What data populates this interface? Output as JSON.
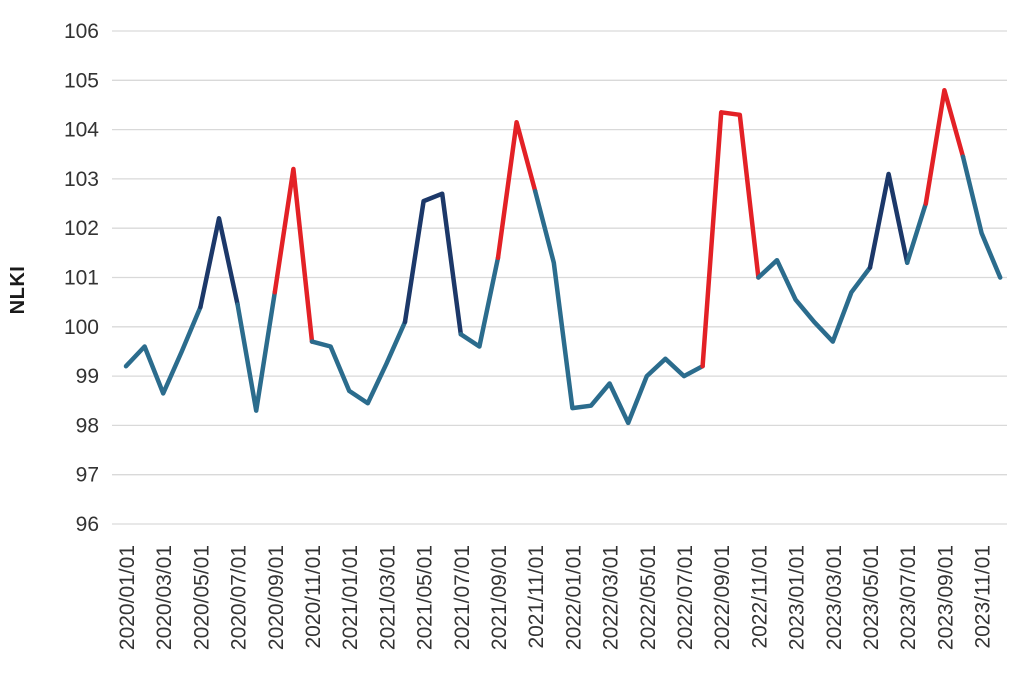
{
  "chart_data": {
    "type": "line",
    "title": "",
    "ylabel": "NLKI",
    "xlabel": "",
    "ylim": [
      96,
      106
    ],
    "ytick_step": 1,
    "ytick_labels": [
      "96",
      "97",
      "98",
      "99",
      "100",
      "101",
      "102",
      "103",
      "104",
      "105",
      "106"
    ],
    "grid": "horizontal",
    "gridline_color": "#D9D9D9",
    "axis_text_color": "#333333",
    "background": "#FFFFFF",
    "legend": "none",
    "x": [
      "2020/01/01",
      "2020/02/01",
      "2020/03/01",
      "2020/04/01",
      "2020/05/01",
      "2020/06/01",
      "2020/07/01",
      "2020/08/01",
      "2020/09/01",
      "2020/10/01",
      "2020/11/01",
      "2020/12/01",
      "2021/01/01",
      "2021/02/01",
      "2021/03/01",
      "2021/04/01",
      "2021/05/01",
      "2021/06/01",
      "2021/07/01",
      "2021/08/01",
      "2021/09/01",
      "2021/10/01",
      "2021/11/01",
      "2021/12/01",
      "2022/01/01",
      "2022/02/01",
      "2022/03/01",
      "2022/04/01",
      "2022/05/01",
      "2022/06/01",
      "2022/07/01",
      "2022/08/01",
      "2022/09/01",
      "2022/10/01",
      "2022/11/01",
      "2022/12/01",
      "2023/01/01",
      "2023/02/01",
      "2023/03/01",
      "2023/04/01",
      "2023/05/01",
      "2023/06/01",
      "2023/07/01",
      "2023/08/01",
      "2023/09/01",
      "2023/10/01",
      "2023/11/01",
      "2023/12/01"
    ],
    "xtick_labels": [
      "2020/01/01",
      "2020/03/01",
      "2020/05/01",
      "2020/07/01",
      "2020/09/01",
      "2020/11/01",
      "2021/01/01",
      "2021/03/01",
      "2021/05/01",
      "2021/07/01",
      "2021/09/01",
      "2021/11/01",
      "2022/01/01",
      "2022/03/01",
      "2022/05/01",
      "2022/07/01",
      "2022/09/01",
      "2022/11/01",
      "2023/01/01",
      "2023/03/01",
      "2023/05/01",
      "2023/07/01",
      "2023/09/01",
      "2023/11/01"
    ],
    "xtick_every_n_points": 2,
    "series": [
      {
        "name": "NLKI",
        "values": [
          99.2,
          99.6,
          98.65,
          99.5,
          100.4,
          102.2,
          100.45,
          98.3,
          100.7,
          103.2,
          99.7,
          99.6,
          98.7,
          98.45,
          99.25,
          100.1,
          102.55,
          102.7,
          99.85,
          99.6,
          101.4,
          104.15,
          102.75,
          101.3,
          98.35,
          98.4,
          98.85,
          98.05,
          99.0,
          99.35,
          99.0,
          99.2,
          104.35,
          104.3,
          101.0,
          101.35,
          100.55,
          100.1,
          99.7,
          100.7,
          101.2,
          103.1,
          101.3,
          102.5,
          104.8,
          103.45,
          101.9,
          101.0
        ],
        "segment_color_keys": [
          "teal",
          "teal",
          "teal",
          "teal",
          "teal",
          "navy",
          "navy",
          "teal",
          "teal",
          "red",
          "red",
          "teal",
          "teal",
          "teal",
          "teal",
          "teal",
          "navy",
          "navy",
          "navy",
          "teal",
          "teal",
          "red",
          "red",
          "teal",
          "teal",
          "teal",
          "teal",
          "teal",
          "teal",
          "teal",
          "teal",
          "teal",
          "red",
          "red",
          "red",
          "teal",
          "teal",
          "teal",
          "teal",
          "teal",
          "teal",
          "navy",
          "navy",
          "teal",
          "red",
          "red",
          "teal",
          "teal"
        ]
      }
    ],
    "colors": {
      "teal": "#2B6C8D",
      "navy": "#1C3869",
      "red": "#E32126"
    },
    "line_width": 4.5
  }
}
